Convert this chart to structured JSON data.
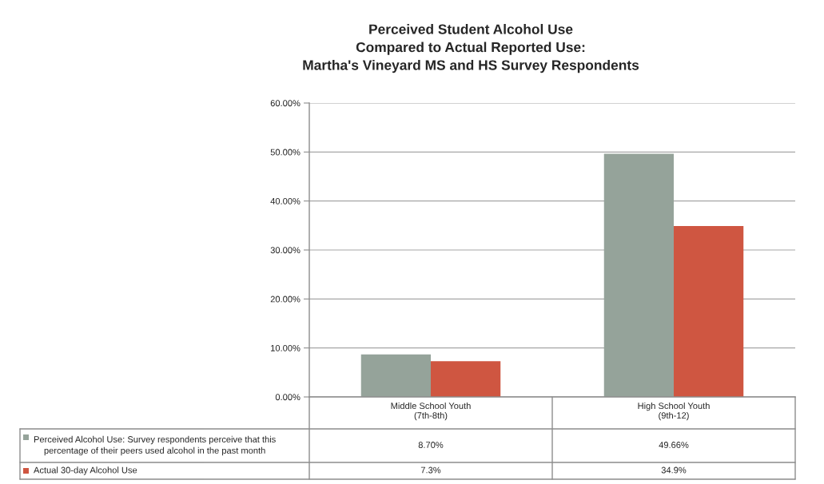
{
  "chart_data": {
    "type": "bar",
    "title": "Perceived Student Alcohol Use\nCompared to Actual Reported Use:\nMartha's Vineyard MS and HS Survey Respondents",
    "categories": [
      "Middle School Youth\n(7th-8th)",
      "High School Youth\n(9th-12)"
    ],
    "series": [
      {
        "name": "Perceived Alcohol Use: Survey respondents perceive that this percentage of their peers used alcohol in the past month",
        "color": "#95a39a",
        "values": [
          8.7,
          49.66
        ],
        "value_labels": [
          "8.70%",
          "49.66%"
        ]
      },
      {
        "name": "Actual 30-day Alcohol Use",
        "color": "#cf5641",
        "values": [
          7.3,
          34.9
        ],
        "value_labels": [
          "7.3%",
          "34.9%"
        ]
      }
    ],
    "ylim": [
      0,
      60
    ],
    "yticks": [
      {
        "value": 0,
        "label": "0.00%"
      },
      {
        "value": 10,
        "label": "10.00%"
      },
      {
        "value": 20,
        "label": "20.00%"
      },
      {
        "value": 30,
        "label": "30.00%"
      },
      {
        "value": 40,
        "label": "40.00%"
      },
      {
        "value": 50,
        "label": "50.00%"
      },
      {
        "value": 60,
        "label": "60.00%"
      }
    ],
    "grid": "y",
    "legend": "bottom"
  }
}
